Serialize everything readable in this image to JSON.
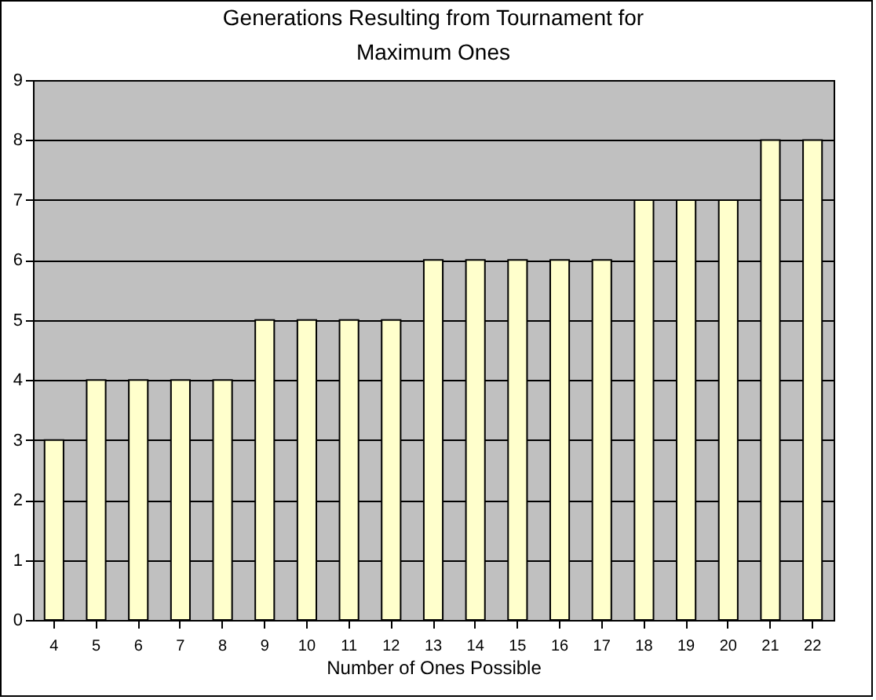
{
  "chart_data": {
    "type": "bar",
    "title": "Generations Resulting from Tournament for Maximum Ones",
    "xlabel": "Number of Ones Possible",
    "categories": [
      "4",
      "5",
      "6",
      "7",
      "8",
      "9",
      "10",
      "11",
      "12",
      "13",
      "14",
      "15",
      "16",
      "17",
      "18",
      "19",
      "20",
      "21",
      "22"
    ],
    "values": [
      3,
      4,
      4,
      4,
      4,
      5,
      5,
      5,
      5,
      6,
      6,
      6,
      6,
      6,
      7,
      7,
      7,
      8,
      8
    ],
    "color": "#ffffcc",
    "ylim": [
      0,
      9
    ],
    "yticks": [
      0,
      1,
      2,
      3,
      4,
      5,
      6,
      7,
      8,
      9
    ],
    "grid": "y"
  }
}
